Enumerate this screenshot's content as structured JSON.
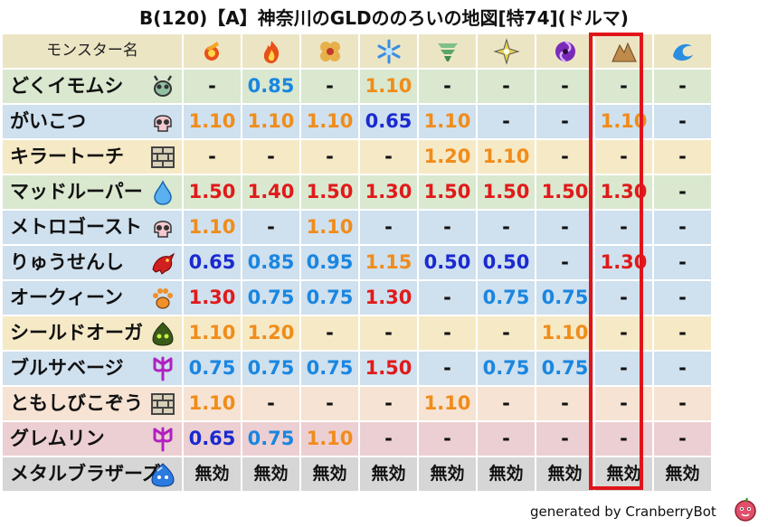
{
  "title": "B(120)【A】神奈川のGLDののろいの地図[特74](ドルマ)",
  "header": {
    "name_label": "モンスター名",
    "elements": [
      "fire-ball-icon",
      "flame-icon",
      "explosion-icon",
      "ice-icon",
      "wind-icon",
      "light-icon",
      "darkness-icon",
      "earth-icon",
      "water-icon"
    ],
    "highlight_index": 6
  },
  "colors": {
    "header_bg": "#ece5c4",
    "1.50": "#e01a1a",
    "1.40": "#e01a1a",
    "1.30": "#e01a1a",
    "1.20": "#f08c1a",
    "1.15": "#f08c1a",
    "1.10": "#f08c1a",
    "0.95": "#1a86e0",
    "0.85": "#1a86e0",
    "0.75": "#1a86e0",
    "0.65": "#1a2ad0",
    "0.50": "#1a2ad0",
    "default": "#111111"
  },
  "rows": [
    {
      "name": "どくイモムシ",
      "type_icon": "bug-icon",
      "bg": "#d9e8cf",
      "values": [
        "-",
        "0.85",
        "-",
        "1.10",
        "-",
        "-",
        "-",
        "-",
        "-"
      ]
    },
    {
      "name": "がいこつ",
      "type_icon": "skull-icon",
      "bg": "#cfe0ee",
      "values": [
        "1.10",
        "1.10",
        "1.10",
        "0.65",
        "1.10",
        "-",
        "-",
        "1.10",
        "-"
      ]
    },
    {
      "name": "キラートーチ",
      "type_icon": "brick-icon",
      "bg": "#f6e9c6",
      "values": [
        "-",
        "-",
        "-",
        "-",
        "1.20",
        "1.10",
        "-",
        "-",
        "-"
      ]
    },
    {
      "name": "マッドルーパー",
      "type_icon": "drop-icon",
      "bg": "#d9e8cf",
      "values": [
        "1.50",
        "1.40",
        "1.50",
        "1.30",
        "1.50",
        "1.50",
        "1.50",
        "1.30",
        "-"
      ]
    },
    {
      "name": "メトロゴースト",
      "type_icon": "skull-icon",
      "bg": "#cfe0ee",
      "values": [
        "1.10",
        "-",
        "1.10",
        "-",
        "-",
        "-",
        "-",
        "-",
        "-"
      ]
    },
    {
      "name": "りゅうせんし",
      "type_icon": "dragon-icon",
      "bg": "#cfe0ee",
      "values": [
        "0.65",
        "0.85",
        "0.95",
        "1.15",
        "0.50",
        "0.50",
        "-",
        "1.30",
        "-"
      ]
    },
    {
      "name": "オークィーン",
      "type_icon": "paw-icon",
      "bg": "#cfe0ee",
      "values": [
        "1.30",
        "0.75",
        "0.75",
        "1.30",
        "-",
        "0.75",
        "0.75",
        "-",
        "-"
      ]
    },
    {
      "name": "シールドオーガ",
      "type_icon": "slime-green-icon",
      "bg": "#f6e9c6",
      "values": [
        "1.10",
        "1.20",
        "-",
        "-",
        "-",
        "-",
        "1.10",
        "-",
        "-"
      ]
    },
    {
      "name": "ブルサベージ",
      "type_icon": "trident-icon",
      "bg": "#cfe0ee",
      "values": [
        "0.75",
        "0.75",
        "0.75",
        "1.50",
        "-",
        "0.75",
        "0.75",
        "-",
        "-"
      ]
    },
    {
      "name": "ともしびこぞう",
      "type_icon": "brick-icon",
      "bg": "#f6e3d3",
      "values": [
        "1.10",
        "-",
        "-",
        "-",
        "1.10",
        "-",
        "-",
        "-",
        "-"
      ]
    },
    {
      "name": "グレムリン",
      "type_icon": "trident-icon",
      "bg": "#eccfd2",
      "values": [
        "0.65",
        "0.75",
        "1.10",
        "-",
        "-",
        "-",
        "-",
        "-",
        "-"
      ]
    },
    {
      "name": "メタルブラザーズ",
      "type_icon": "metal-slime-icon",
      "bg": "#d6d6d6",
      "values": [
        "無効",
        "無効",
        "無効",
        "無効",
        "無効",
        "無効",
        "無効",
        "無効",
        "無効"
      ]
    }
  ],
  "footer": "generated by CranberryBot"
}
